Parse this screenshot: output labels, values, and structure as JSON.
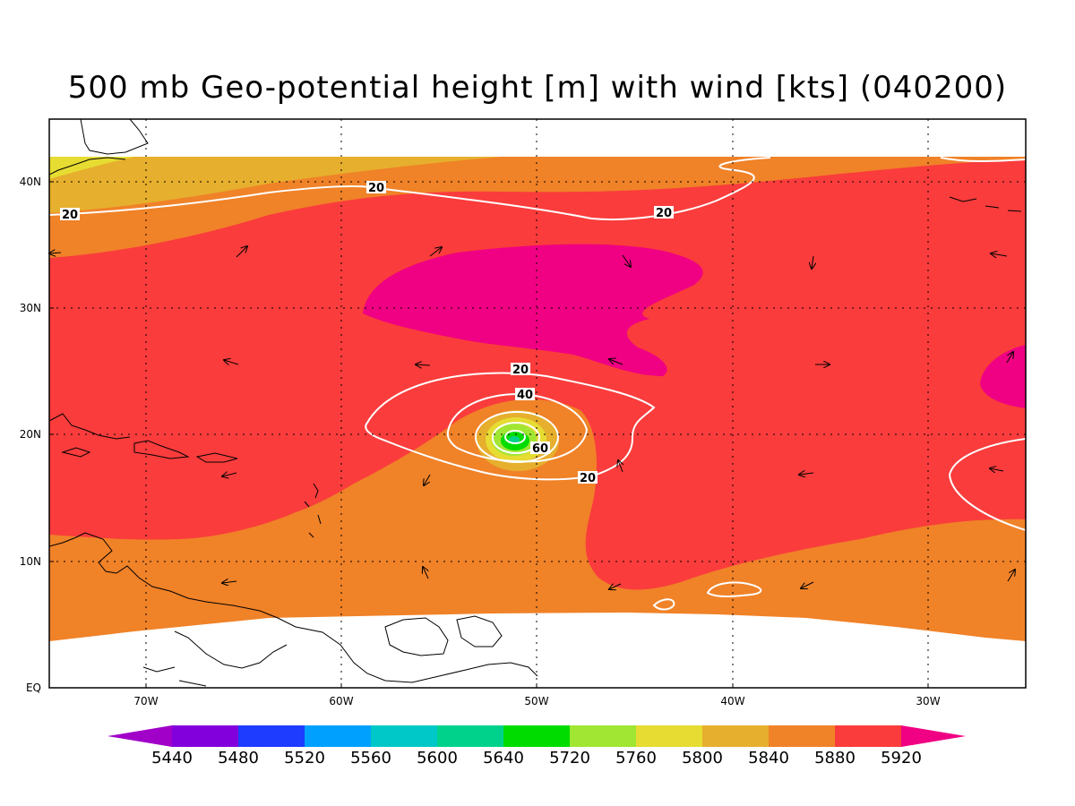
{
  "title": "500 mb Geo-potential height [m] with wind [kts] (040200)",
  "axes": {
    "x_labels": [
      "70W",
      "60W",
      "50W",
      "40W",
      "30W"
    ],
    "y_labels": [
      "EQ",
      "10N",
      "20N",
      "30N",
      "40N"
    ]
  },
  "contour_labels": [
    "20",
    "20",
    "20",
    "20",
    "40",
    "60",
    "20"
  ],
  "colorbar": {
    "labels": [
      "5440",
      "5480",
      "5520",
      "5560",
      "5600",
      "5640",
      "5720",
      "5760",
      "5800",
      "5840",
      "5880",
      "5920"
    ],
    "colors": [
      "#a000c8",
      "#8200dc",
      "#1e3cff",
      "#00a0ff",
      "#00c8c8",
      "#00d28c",
      "#00dc00",
      "#a0e632",
      "#e6dc32",
      "#e6af2d",
      "#f08228",
      "#fa3c3c",
      "#f00082"
    ]
  },
  "colors": {
    "c5800": "#e6dc32",
    "c5840": "#e6af2d",
    "c5880": "#f08228",
    "c5920": "#fa3c3c",
    "c5960": "#f00082",
    "contour": "#ffffff"
  }
}
